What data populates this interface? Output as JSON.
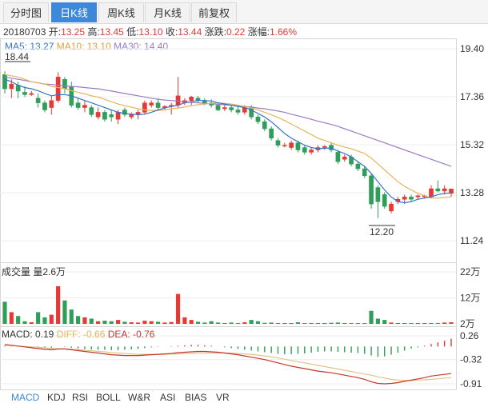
{
  "tabs": [
    {
      "label": "分时图",
      "active": false
    },
    {
      "label": "日K线",
      "active": true
    },
    {
      "label": "周K线",
      "active": false
    },
    {
      "label": "月K线",
      "active": false
    },
    {
      "label": "前复权",
      "active": false
    }
  ],
  "info": {
    "date": "20180703",
    "open_label": "开:",
    "open": "13.25",
    "high_label": "高:",
    "high": "13.45",
    "low_label": "低:",
    "low": "13.10",
    "close_label": "收:",
    "close": "13.44",
    "change_label": "涨跌:",
    "change": "0.22",
    "pct_label": "涨幅:",
    "pct": "1.66%"
  },
  "ma_legend": {
    "ma5": "MA5: 13.27",
    "ma10": "MA10: 13.10",
    "ma30": "MA30: 14.40"
  },
  "volume_legend": {
    "label": "成交量",
    "value": "量2.6万"
  },
  "macd_legend": {
    "macd": "MACD: 0.19",
    "diff": "DIFF: -0.66",
    "dea": "DEA: -0.76"
  },
  "indicator_tabs": [
    "MACD",
    "KDJ",
    "RSI",
    "BOLL",
    "W&R",
    "ASI",
    "BIAS",
    "VR"
  ],
  "colors": {
    "up": "#e53935",
    "down": "#2e9e58",
    "ma5": "#3575c7",
    "ma10": "#e6b45a",
    "ma30": "#9b7cc4",
    "tab_active": "#3e88d9",
    "diff": "#c0392b",
    "dea": "#e6c28a"
  },
  "chart_data": {
    "type": "candlestick",
    "price_axis": {
      "ticks": [
        "19.40",
        "17.36",
        "15.32",
        "13.28",
        "11.24"
      ],
      "range": [
        11.24,
        19.4
      ]
    },
    "volume_axis": {
      "ticks": [
        "22万",
        "12万",
        "2万"
      ],
      "range": [
        0,
        22
      ]
    },
    "macd_axis": {
      "ticks": [
        "0.26",
        "-0.32",
        "-0.91"
      ],
      "range": [
        -0.91,
        0.26
      ]
    },
    "annotations": {
      "max_label": "18.44",
      "min_label": "12.20"
    },
    "candles": [
      [
        18.3,
        18.44,
        17.5,
        17.7
      ],
      [
        17.7,
        18.1,
        17.3,
        17.9
      ],
      [
        17.85,
        18.0,
        17.3,
        17.6
      ],
      [
        17.55,
        17.8,
        17.35,
        17.45
      ],
      [
        17.45,
        17.6,
        17.4,
        17.5
      ],
      [
        17.3,
        17.5,
        16.9,
        17.1
      ],
      [
        17.1,
        17.2,
        16.7,
        16.8
      ],
      [
        16.9,
        17.4,
        16.6,
        17.2
      ],
      [
        17.2,
        18.4,
        17.1,
        18.2
      ],
      [
        18.1,
        18.2,
        17.5,
        17.7
      ],
      [
        17.8,
        18.0,
        16.9,
        17.0
      ],
      [
        17.1,
        17.3,
        16.8,
        16.9
      ],
      [
        16.9,
        17.2,
        16.7,
        17.0
      ],
      [
        16.9,
        17.0,
        16.5,
        16.6
      ],
      [
        16.5,
        16.9,
        16.4,
        16.7
      ],
      [
        16.7,
        16.8,
        16.3,
        16.4
      ],
      [
        16.6,
        16.8,
        16.3,
        16.5
      ],
      [
        16.4,
        16.8,
        16.2,
        16.7
      ],
      [
        16.8,
        16.9,
        16.5,
        16.6
      ],
      [
        16.5,
        16.7,
        16.4,
        16.6
      ],
      [
        16.6,
        16.8,
        16.4,
        16.7
      ],
      [
        16.7,
        17.2,
        16.6,
        17.1
      ],
      [
        17.0,
        17.2,
        16.9,
        17.1
      ],
      [
        17.1,
        17.3,
        16.8,
        16.9
      ],
      [
        16.9,
        17.0,
        16.8,
        16.95
      ],
      [
        16.95,
        17.1,
        16.6,
        17.0
      ],
      [
        17.0,
        18.2,
        16.9,
        17.4
      ],
      [
        17.1,
        17.3,
        17.0,
        17.2
      ],
      [
        17.2,
        17.4,
        17.0,
        17.35
      ],
      [
        17.3,
        17.4,
        17.1,
        17.2
      ],
      [
        17.2,
        17.3,
        17.0,
        17.1
      ],
      [
        17.1,
        17.25,
        16.9,
        17.0
      ],
      [
        17.0,
        17.1,
        16.75,
        16.8
      ],
      [
        16.85,
        17.0,
        16.75,
        16.9
      ],
      [
        16.9,
        17.0,
        16.7,
        16.8
      ],
      [
        16.8,
        16.95,
        16.6,
        16.7
      ],
      [
        16.7,
        17.0,
        16.6,
        16.9
      ],
      [
        16.9,
        17.0,
        16.4,
        16.5
      ],
      [
        16.5,
        16.6,
        16.2,
        16.3
      ],
      [
        16.3,
        16.4,
        15.9,
        16.0
      ],
      [
        16.0,
        16.1,
        15.5,
        15.6
      ],
      [
        15.5,
        15.6,
        15.2,
        15.3
      ],
      [
        15.3,
        15.4,
        15.2,
        15.3
      ],
      [
        15.2,
        15.5,
        15.1,
        15.4
      ],
      [
        15.4,
        15.5,
        15.0,
        15.1
      ],
      [
        15.2,
        15.3,
        14.9,
        15.0
      ],
      [
        15.0,
        15.2,
        14.9,
        15.1
      ],
      [
        15.1,
        15.3,
        15.0,
        15.2
      ],
      [
        15.2,
        15.3,
        15.1,
        15.25
      ],
      [
        15.3,
        15.4,
        15.0,
        15.1
      ],
      [
        15.0,
        15.1,
        14.5,
        14.6
      ],
      [
        14.7,
        14.9,
        14.6,
        14.8
      ],
      [
        14.8,
        14.9,
        14.4,
        14.5
      ],
      [
        14.5,
        14.6,
        14.2,
        14.3
      ],
      [
        14.3,
        14.4,
        13.9,
        14.0
      ],
      [
        14.0,
        14.1,
        12.6,
        12.8
      ],
      [
        13.5,
        13.6,
        12.2,
        12.9
      ],
      [
        13.2,
        13.3,
        12.6,
        12.7
      ],
      [
        12.5,
        12.9,
        12.4,
        12.8
      ],
      [
        12.9,
        13.1,
        12.8,
        13.0
      ],
      [
        13.0,
        13.2,
        12.8,
        13.1
      ],
      [
        13.1,
        13.2,
        12.9,
        13.0
      ],
      [
        13.1,
        13.2,
        13.0,
        13.15
      ],
      [
        13.1,
        13.2,
        13.05,
        13.15
      ],
      [
        13.1,
        13.6,
        13.05,
        13.45
      ],
      [
        13.45,
        13.8,
        13.3,
        13.35
      ],
      [
        13.35,
        13.6,
        13.2,
        13.45
      ],
      [
        13.25,
        13.45,
        13.1,
        13.44
      ]
    ],
    "ma5": [
      18.1,
      18.0,
      17.85,
      17.75,
      17.7,
      17.62,
      17.5,
      17.4,
      17.45,
      17.45,
      17.4,
      17.3,
      17.2,
      17.1,
      17.0,
      16.9,
      16.8,
      16.7,
      16.65,
      16.62,
      16.6,
      16.62,
      16.7,
      16.8,
      16.88,
      16.95,
      17.0,
      17.1,
      17.15,
      17.2,
      17.2,
      17.18,
      17.1,
      17.05,
      17.0,
      16.95,
      16.9,
      16.8,
      16.65,
      16.5,
      16.3,
      16.05,
      15.8,
      15.6,
      15.45,
      15.3,
      15.2,
      15.15,
      15.17,
      15.18,
      15.05,
      14.95,
      14.8,
      14.6,
      14.4,
      14.1,
      13.75,
      13.4,
      13.1,
      12.9,
      12.85,
      12.9,
      13.0,
      13.05,
      13.1,
      13.2,
      13.25,
      13.27
    ],
    "ma10": [
      18.3,
      18.25,
      18.2,
      18.1,
      18.0,
      17.95,
      17.9,
      17.8,
      17.75,
      17.7,
      17.62,
      17.55,
      17.48,
      17.4,
      17.35,
      17.25,
      17.15,
      17.05,
      16.98,
      16.92,
      16.85,
      16.8,
      16.78,
      16.78,
      16.8,
      16.85,
      16.88,
      16.92,
      16.98,
      17.02,
      17.05,
      17.08,
      17.1,
      17.08,
      17.05,
      17.0,
      16.95,
      16.88,
      16.8,
      16.7,
      16.6,
      16.48,
      16.35,
      16.2,
      16.05,
      15.9,
      15.75,
      15.6,
      15.5,
      15.4,
      15.3,
      15.22,
      15.15,
      15.05,
      14.95,
      14.75,
      14.5,
      14.25,
      14.0,
      13.75,
      13.55,
      13.4,
      13.25,
      13.15,
      13.05,
      13.05,
      13.08,
      13.1
    ],
    "ma30": [
      18.2,
      18.15,
      18.1,
      18.05,
      18.0,
      17.95,
      17.9,
      17.88,
      17.85,
      17.82,
      17.8,
      17.78,
      17.75,
      17.72,
      17.7,
      17.65,
      17.6,
      17.55,
      17.5,
      17.45,
      17.4,
      17.35,
      17.3,
      17.25,
      17.22,
      17.2,
      17.18,
      17.15,
      17.12,
      17.1,
      17.08,
      17.06,
      17.04,
      17.02,
      17.0,
      16.98,
      16.95,
      16.92,
      16.88,
      16.85,
      16.8,
      16.75,
      16.7,
      16.62,
      16.55,
      16.48,
      16.4,
      16.32,
      16.25,
      16.18,
      16.1,
      16.0,
      15.9,
      15.8,
      15.7,
      15.6,
      15.5,
      15.4,
      15.3,
      15.2,
      15.1,
      15.0,
      14.9,
      14.8,
      14.7,
      14.6,
      14.5,
      14.4
    ],
    "volume": [
      10.5,
      6.5,
      5.0,
      3.0,
      2.6,
      6.5,
      4.5,
      5.5,
      16.5,
      11.0,
      7.5,
      5.0,
      4.5,
      4.0,
      3.0,
      3.2,
      3.0,
      3.5,
      2.8,
      2.6,
      2.5,
      3.2,
      3.0,
      2.8,
      2.5,
      2.7,
      13.5,
      4.5,
      3.5,
      2.8,
      2.5,
      3.0,
      2.5,
      2.2,
      2.5,
      2.3,
      2.6,
      3.5,
      3.0,
      2.4,
      2.5,
      2.2,
      2.0,
      2.1,
      2.6,
      2.2,
      2.0,
      2.2,
      2.0,
      2.4,
      2.5,
      2.0,
      1.8,
      2.0,
      2.2,
      7.0,
      4.0,
      3.5,
      2.5,
      2.0,
      2.2,
      2.0,
      2.2,
      2.0,
      2.2,
      2.0,
      2.5,
      2.6
    ],
    "macd_hist": [
      0.02,
      0.01,
      0.0,
      -0.01,
      -0.02,
      -0.03,
      -0.04,
      -0.03,
      0.0,
      -0.01,
      -0.03,
      -0.05,
      -0.06,
      -0.07,
      -0.08,
      -0.08,
      -0.09,
      -0.09,
      -0.08,
      -0.07,
      -0.06,
      -0.04,
      -0.02,
      -0.01,
      0.0,
      0.01,
      0.02,
      0.03,
      0.04,
      0.04,
      0.03,
      0.02,
      0.0,
      -0.02,
      -0.04,
      -0.06,
      -0.08,
      -0.1,
      -0.12,
      -0.14,
      -0.16,
      -0.18,
      -0.19,
      -0.19,
      -0.18,
      -0.17,
      -0.15,
      -0.13,
      -0.12,
      -0.12,
      -0.13,
      -0.14,
      -0.15,
      -0.16,
      -0.18,
      -0.22,
      -0.25,
      -0.24,
      -0.2,
      -0.15,
      -0.1,
      -0.05,
      -0.02,
      0.02,
      0.06,
      0.1,
      0.14,
      0.19
    ],
    "macd_diff": [
      0.05,
      0.03,
      0.01,
      -0.01,
      -0.03,
      -0.05,
      -0.07,
      -0.08,
      -0.06,
      -0.06,
      -0.08,
      -0.1,
      -0.12,
      -0.14,
      -0.16,
      -0.18,
      -0.2,
      -0.21,
      -0.22,
      -0.22,
      -0.22,
      -0.21,
      -0.2,
      -0.19,
      -0.18,
      -0.17,
      -0.15,
      -0.14,
      -0.13,
      -0.12,
      -0.12,
      -0.13,
      -0.14,
      -0.16,
      -0.18,
      -0.2,
      -0.23,
      -0.26,
      -0.29,
      -0.32,
      -0.36,
      -0.4,
      -0.44,
      -0.48,
      -0.51,
      -0.54,
      -0.57,
      -0.6,
      -0.62,
      -0.64,
      -0.67,
      -0.7,
      -0.73,
      -0.76,
      -0.8,
      -0.86,
      -0.9,
      -0.91,
      -0.9,
      -0.88,
      -0.85,
      -0.82,
      -0.79,
      -0.76,
      -0.72,
      -0.7,
      -0.68,
      -0.66
    ],
    "macd_dea": [
      0.03,
      0.02,
      0.01,
      0.0,
      -0.01,
      -0.02,
      -0.03,
      -0.05,
      -0.06,
      -0.06,
      -0.07,
      -0.08,
      -0.09,
      -0.1,
      -0.12,
      -0.13,
      -0.15,
      -0.16,
      -0.17,
      -0.18,
      -0.19,
      -0.19,
      -0.19,
      -0.19,
      -0.19,
      -0.18,
      -0.18,
      -0.17,
      -0.17,
      -0.16,
      -0.16,
      -0.16,
      -0.16,
      -0.16,
      -0.16,
      -0.17,
      -0.18,
      -0.19,
      -0.21,
      -0.23,
      -0.25,
      -0.28,
      -0.31,
      -0.34,
      -0.37,
      -0.4,
      -0.43,
      -0.46,
      -0.49,
      -0.52,
      -0.55,
      -0.58,
      -0.61,
      -0.64,
      -0.67,
      -0.7,
      -0.74,
      -0.77,
      -0.8,
      -0.82,
      -0.83,
      -0.83,
      -0.82,
      -0.81,
      -0.8,
      -0.79,
      -0.77,
      -0.76
    ]
  }
}
